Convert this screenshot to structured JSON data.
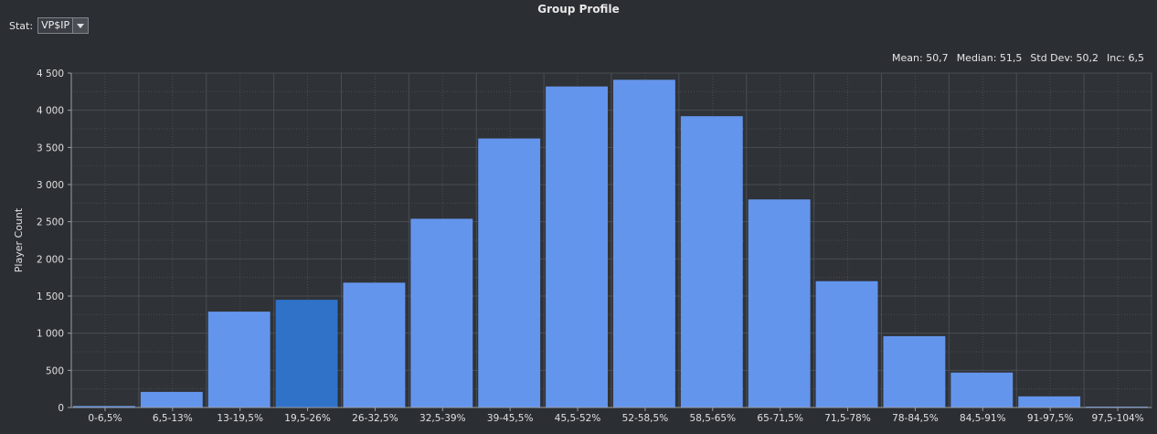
{
  "window": {
    "title": "Group Profile"
  },
  "stat": {
    "label": "Stat:",
    "value": "VP$IP"
  },
  "summary": {
    "mean": "Mean: 50,7",
    "median": "Median: 51,5",
    "std_dev": "Std Dev: 50,2",
    "inc": "Inc: 6,5"
  },
  "colors": {
    "bar": "#6495ed",
    "bar_highlight": "#2f72c8",
    "background": "#2b2e33",
    "plot_background": "#2f3236",
    "grid": "#4a4e54"
  },
  "chart_data": {
    "type": "bar",
    "title": "Group Profile",
    "ylabel": "Player Count",
    "xlabel": "",
    "ylim": [
      0,
      4500
    ],
    "yticks": [
      0,
      500,
      1000,
      1500,
      2000,
      2500,
      3000,
      3500,
      4000,
      4500
    ],
    "ytick_labels": [
      "0",
      "500",
      "1 000",
      "1 500",
      "2 000",
      "2 500",
      "3 000",
      "3 500",
      "4 000",
      "4 500"
    ],
    "categories": [
      "0-6,5%",
      "6,5-13%",
      "13-19,5%",
      "19,5-26%",
      "26-32,5%",
      "32,5-39%",
      "39-45,5%",
      "45,5-52%",
      "52-58,5%",
      "58,5-65%",
      "65-71,5%",
      "71,5-78%",
      "78-84,5%",
      "84,5-91%",
      "91-97,5%",
      "97,5-104%"
    ],
    "values": [
      20,
      210,
      1290,
      1450,
      1680,
      2540,
      3620,
      4320,
      4410,
      3920,
      2800,
      1700,
      960,
      470,
      150,
      5
    ],
    "highlight_index": 3,
    "grid": true,
    "legend": "none"
  }
}
